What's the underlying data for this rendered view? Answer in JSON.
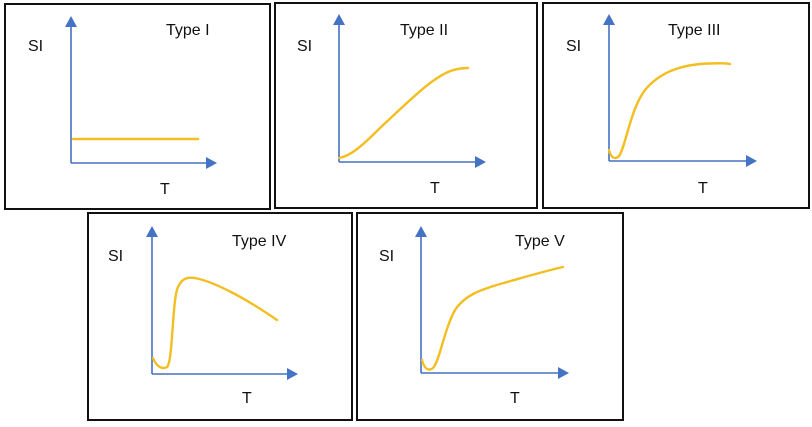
{
  "panels": [
    {
      "title": "Type I",
      "ylabel": "SI",
      "xlabel": "T"
    },
    {
      "title": "Type II",
      "ylabel": "SI",
      "xlabel": "T"
    },
    {
      "title": "Type III",
      "ylabel": "SI",
      "xlabel": "T"
    },
    {
      "title": "Type IV",
      "ylabel": "SI",
      "xlabel": "T"
    },
    {
      "title": "Type V",
      "ylabel": "SI",
      "xlabel": "T"
    }
  ],
  "colors": {
    "axis": "#4472C4",
    "curve": "#F2BE22",
    "frame": "#111111"
  }
}
